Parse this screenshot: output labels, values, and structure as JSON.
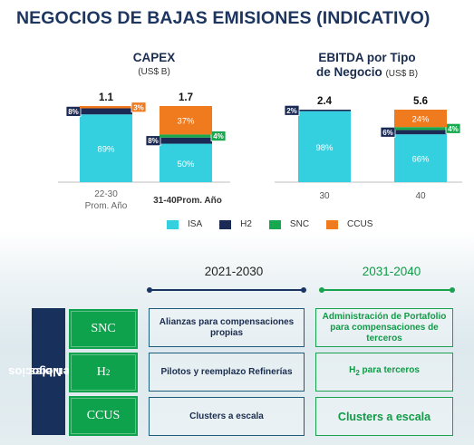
{
  "page": {
    "title": "NEGOCIOS DE BAJAS EMISIONES (INDICATIVO)"
  },
  "colors": {
    "ISA": "#35d0df",
    "H2": "#1b2a55",
    "SNC": "#18a84e",
    "CCUS": "#f07a1e"
  },
  "chart_data": [
    {
      "type": "bar",
      "title": "CAPEX",
      "subtitle": "(US$ B)",
      "categories": [
        "22-30 Prom. Año",
        "31-40Prom. Año"
      ],
      "totals": [
        "1.1",
        "1.7"
      ],
      "series": [
        {
          "name": "ISA",
          "values": [
            89,
            50
          ],
          "labels": [
            "89%",
            "50%"
          ]
        },
        {
          "name": "H2",
          "values": [
            8,
            8
          ],
          "labels": [
            "8%",
            "8%"
          ]
        },
        {
          "name": "SNC",
          "values": [
            0,
            4
          ],
          "labels": [
            "",
            "4%"
          ]
        },
        {
          "name": "CCUS",
          "values": [
            3,
            37
          ],
          "labels": [
            "3%",
            "37%"
          ]
        }
      ]
    },
    {
      "type": "bar",
      "title": "EBITDA por Tipo de Negocio",
      "subtitle": "(US$ B)",
      "categories": [
        "30",
        "40"
      ],
      "totals": [
        "2.4",
        "5.6"
      ],
      "series": [
        {
          "name": "ISA",
          "values": [
            98,
            66
          ],
          "labels": [
            "98%",
            "66%"
          ]
        },
        {
          "name": "H2",
          "values": [
            2,
            6
          ],
          "labels": [
            "2%",
            "6%"
          ]
        },
        {
          "name": "SNC",
          "values": [
            0,
            4
          ],
          "labels": [
            "",
            "4%"
          ]
        },
        {
          "name": "CCUS",
          "values": [
            0,
            24
          ],
          "labels": [
            "",
            "24%"
          ]
        }
      ]
    }
  ],
  "legend": [
    "ISA",
    "H2",
    "SNC",
    "CCUS"
  ],
  "table": {
    "periods": [
      "2021-2030",
      "2031-2040"
    ],
    "side_title_1": "Negocios",
    "side_title_2": "Sostenibles",
    "rows": [
      {
        "label": "SNC",
        "c1": "Alianzas para compensaciones propias",
        "c2": "Administración de Portafolio para compensaciones de terceros"
      },
      {
        "label": "H",
        "label_sub": "2",
        "c1": "Pilotos y reemplazo Refinerías",
        "c2_pre": "H",
        "c2_sub": "2",
        "c2_post": " para terceros"
      },
      {
        "label": "CCUS",
        "c1": "Clusters a escala",
        "c2": "Clusters a escala"
      }
    ]
  }
}
